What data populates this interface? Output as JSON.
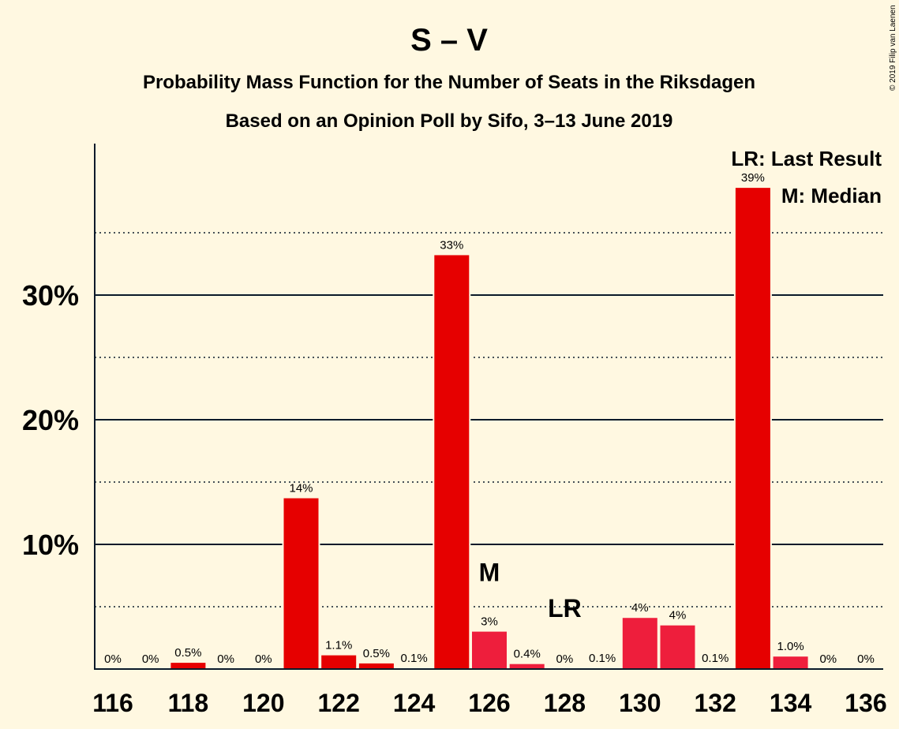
{
  "chart_data": {
    "type": "bar",
    "title": "S – V",
    "subtitle_lines": [
      "Probability Mass Function for the Number of Seats in the Riksdagen",
      "Based on an Opinion Poll by Sifo, 3–13 June 2019"
    ],
    "copyright": "© 2019 Filip van Laenen",
    "x": [
      116,
      117,
      118,
      119,
      120,
      121,
      122,
      123,
      124,
      125,
      126,
      127,
      128,
      129,
      130,
      131,
      132,
      133,
      134,
      135,
      136
    ],
    "values": [
      0,
      0,
      0.5,
      0,
      0,
      13.7,
      1.1,
      0.45,
      0.05,
      33.2,
      3.0,
      0.4,
      0,
      0.05,
      4.1,
      3.5,
      0.05,
      38.6,
      1.0,
      0,
      0
    ],
    "labels": [
      "0%",
      "0%",
      "0.5%",
      "0%",
      "0%",
      "14%",
      "1.1%",
      "0.5%",
      "0.1%",
      "33%",
      "3%",
      "0.4%",
      "0%",
      "0.1%",
      "4%",
      "4%",
      "0.1%",
      "39%",
      "1.0%",
      "0%",
      "0%"
    ],
    "bar_colors": {
      "main": "#E60000",
      "light": "#EE1E3C",
      "light_seats": [
        126,
        127,
        130,
        131,
        134
      ]
    },
    "xticks": [
      116,
      118,
      120,
      122,
      124,
      126,
      128,
      130,
      132,
      134,
      136
    ],
    "yticks_major": [
      {
        "value": 10,
        "label": "10%"
      },
      {
        "value": 20,
        "label": "20%"
      },
      {
        "value": 30,
        "label": "30%"
      }
    ],
    "yticks_minor": [
      5,
      15,
      25,
      35
    ],
    "ylim": [
      0,
      42
    ],
    "median": {
      "seat": 126,
      "label": "M"
    },
    "last_result": {
      "seat": 128,
      "label": "LR"
    },
    "legend": [
      "LR: Last Result",
      "M: Median"
    ],
    "colors": {
      "background": "#FFF8E1",
      "text": "#0b1a2a"
    }
  }
}
